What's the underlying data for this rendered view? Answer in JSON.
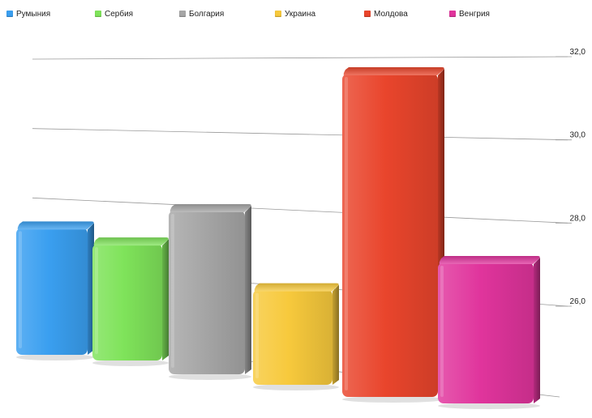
{
  "chart_data": {
    "type": "bar",
    "categories": [
      "Румыния",
      "Сербия",
      "Болгария",
      "Украина",
      "Молдова",
      "Венгрия"
    ],
    "values": [
      28.2,
      27.6,
      28.7,
      26.7,
      31.9,
      27.3
    ],
    "colors": [
      "#3a9ff0",
      "#7fe35a",
      "#a6a6a6",
      "#f7c93c",
      "#e9452c",
      "#e0349c"
    ],
    "y_ticks": [
      "26,0",
      "28,0",
      "30,0",
      "32,0"
    ],
    "ylim": [
      24.5,
      32.0
    ],
    "legend_position": "top",
    "grid": true,
    "title": "",
    "xlabel": "",
    "ylabel": ""
  }
}
